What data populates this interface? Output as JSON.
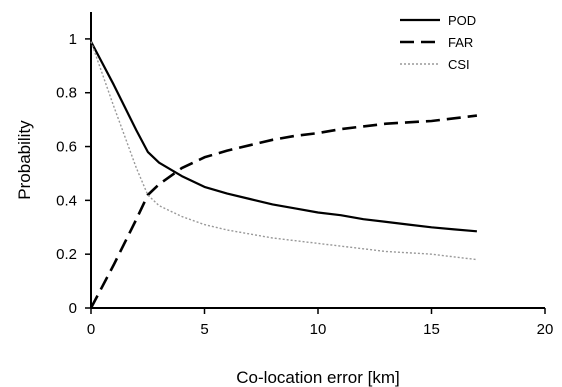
{
  "chart_data": {
    "type": "line",
    "xlabel": "Co-location error [km]",
    "ylabel": "Probability",
    "xlim": [
      0,
      20
    ],
    "ylim": [
      0,
      1.1
    ],
    "xticks": [
      0,
      5,
      10,
      15,
      20
    ],
    "yticks": [
      0,
      0.2,
      0.4,
      0.6,
      0.8,
      1
    ],
    "xtick_labels": [
      "0",
      "5",
      "10",
      "15",
      "20"
    ],
    "ytick_labels": [
      "0",
      "0.2",
      "0.4",
      "0.6",
      "0.8",
      "1"
    ],
    "grid": false,
    "legend_position": "top-right",
    "series": [
      {
        "name": "POD",
        "style": "solid",
        "color": "#000000",
        "x": [
          0,
          1,
          2,
          2.5,
          3,
          4,
          5,
          6,
          7,
          8,
          9,
          10,
          11,
          12,
          13,
          14,
          15,
          16,
          17
        ],
        "y": [
          0.99,
          0.83,
          0.66,
          0.58,
          0.54,
          0.49,
          0.45,
          0.425,
          0.405,
          0.385,
          0.37,
          0.355,
          0.345,
          0.33,
          0.32,
          0.31,
          0.3,
          0.292,
          0.285
        ]
      },
      {
        "name": "FAR",
        "style": "dashed",
        "color": "#000000",
        "x": [
          0,
          1,
          2,
          2.5,
          3,
          4,
          5,
          6,
          7,
          8,
          9,
          10,
          11,
          12,
          13,
          14,
          15,
          16,
          17
        ],
        "y": [
          0.0,
          0.16,
          0.33,
          0.42,
          0.46,
          0.52,
          0.56,
          0.585,
          0.605,
          0.625,
          0.64,
          0.65,
          0.665,
          0.675,
          0.685,
          0.69,
          0.695,
          0.705,
          0.715
        ]
      },
      {
        "name": "CSI",
        "style": "dotted",
        "color": "#999999",
        "x": [
          0,
          1,
          2,
          2.5,
          3,
          4,
          5,
          6,
          7,
          8,
          9,
          10,
          11,
          12,
          13,
          14,
          15,
          16,
          17
        ],
        "y": [
          0.99,
          0.75,
          0.52,
          0.42,
          0.38,
          0.34,
          0.31,
          0.29,
          0.275,
          0.26,
          0.25,
          0.24,
          0.23,
          0.22,
          0.21,
          0.205,
          0.2,
          0.19,
          0.18
        ]
      }
    ]
  }
}
